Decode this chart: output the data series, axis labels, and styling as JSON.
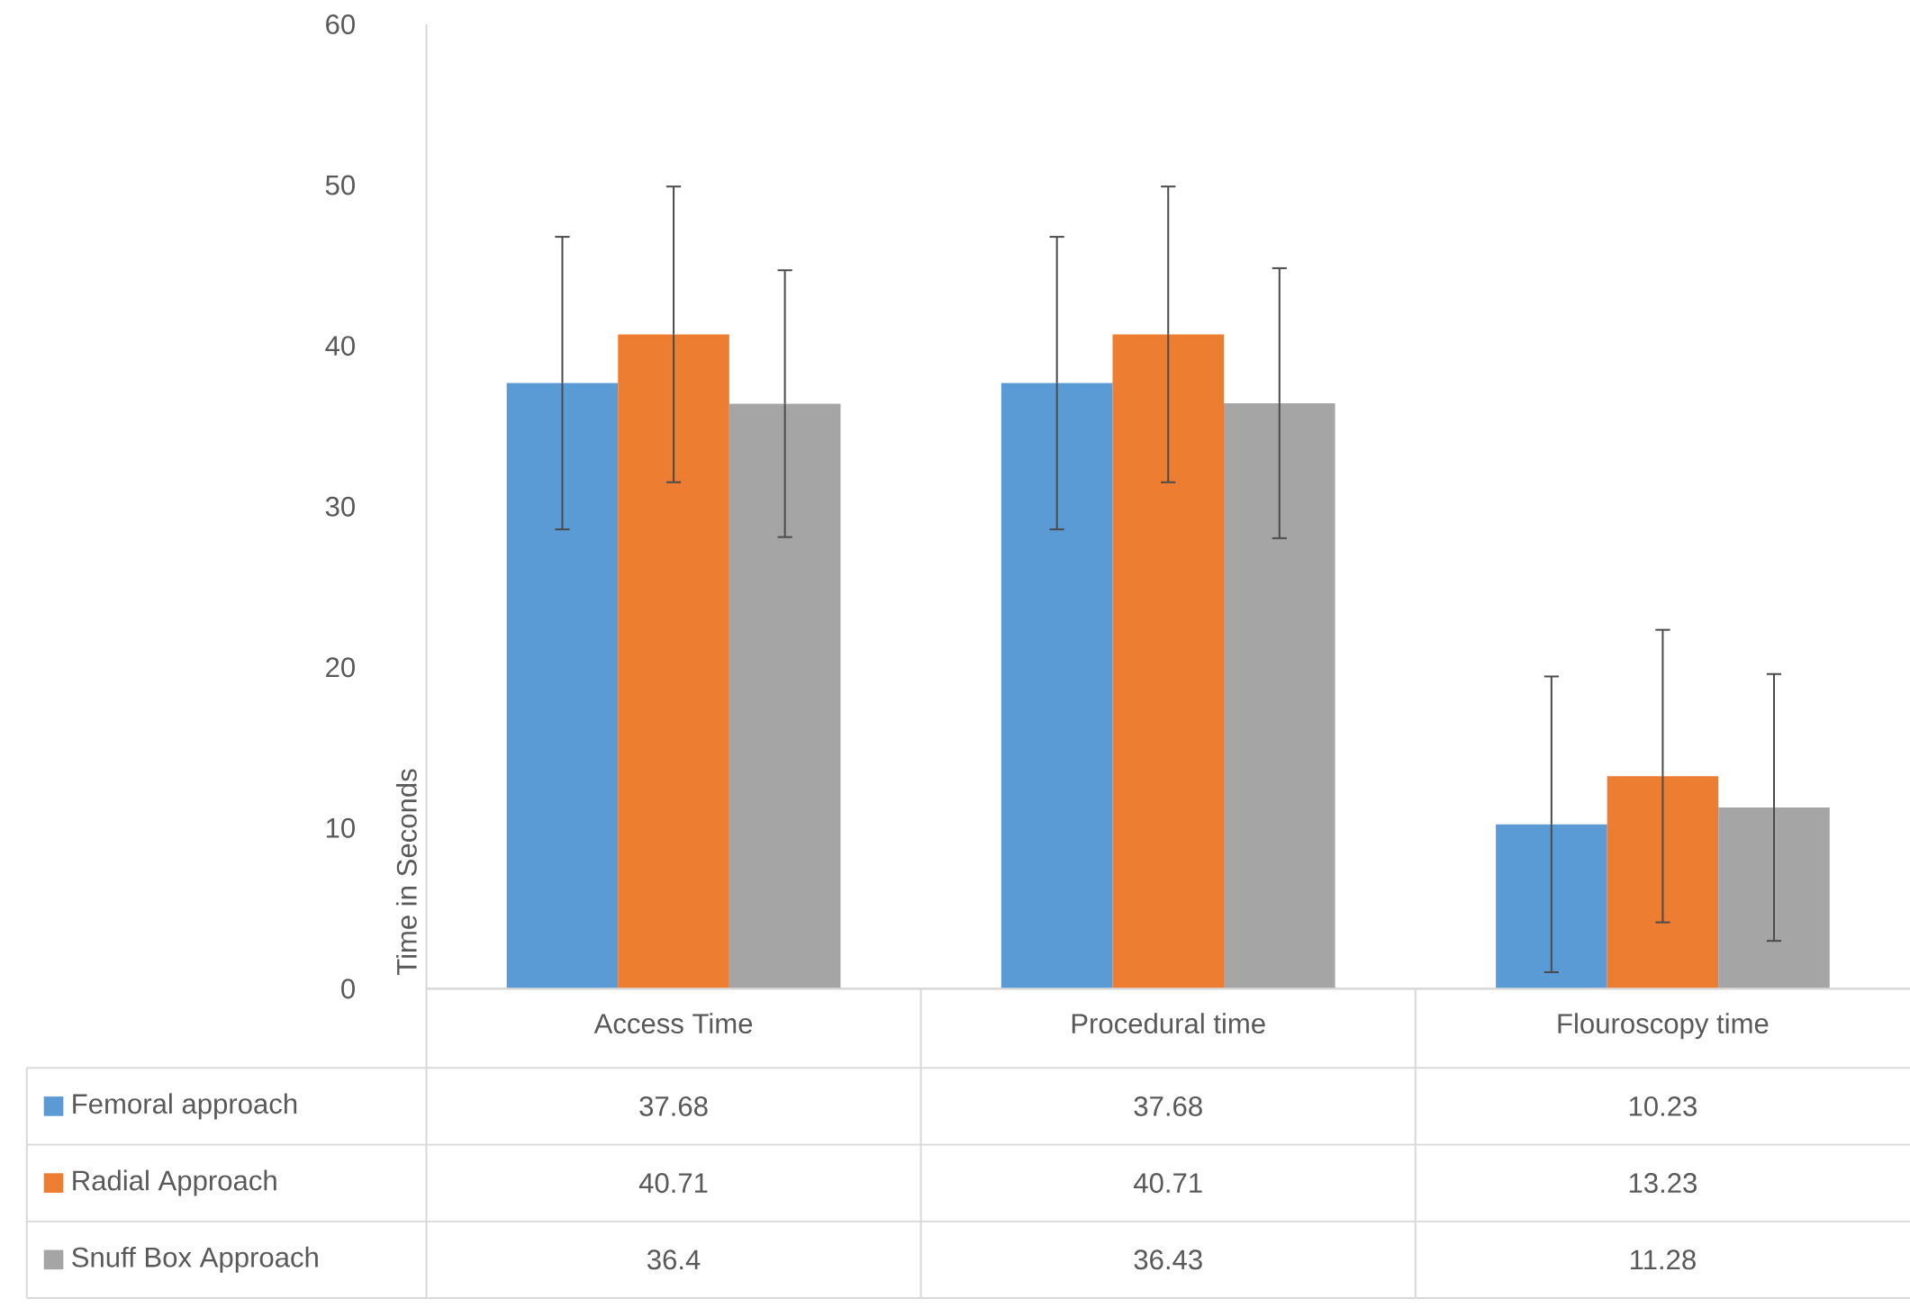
{
  "chart_data": {
    "type": "bar",
    "ylabel": "Time in Seconds",
    "categories": [
      "Access Time",
      "Procedural time",
      "Flouroscopy time"
    ],
    "series": [
      {
        "name": "Femoral approach",
        "color": "#5b9bd5",
        "values": [
          37.68,
          37.68,
          10.23
        ],
        "value_labels": [
          "37.68",
          "37.68",
          "10.23"
        ],
        "errors": [
          9.1,
          9.1,
          9.2
        ]
      },
      {
        "name": "Radial Approach",
        "color": "#ed7d31",
        "values": [
          40.71,
          40.71,
          13.23
        ],
        "value_labels": [
          "40.71",
          "40.71",
          "13.23"
        ],
        "errors": [
          9.2,
          9.2,
          9.1
        ]
      },
      {
        "name": "Snuff Box Approach",
        "color": "#a5a5a5",
        "values": [
          36.4,
          36.43,
          11.28
        ],
        "value_labels": [
          "36.4",
          "36.43",
          "11.28"
        ],
        "errors": [
          8.3,
          8.4,
          8.3
        ]
      }
    ],
    "ylim": [
      0,
      60
    ],
    "yticks": [
      0,
      10,
      20,
      30,
      40,
      50,
      60
    ],
    "grid": false,
    "legend": "bottom"
  }
}
